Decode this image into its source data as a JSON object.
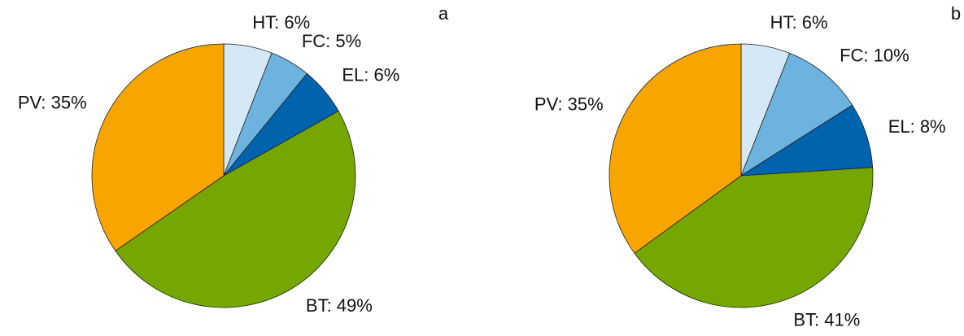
{
  "chart_data": [
    {
      "type": "pie",
      "panel_label": "a",
      "values": [
        6,
        5,
        6,
        49,
        35
      ],
      "value_labels": [
        "HT: 6%",
        "FC: 5%",
        "EL: 6%",
        "BT: 49%",
        "PV: 35%"
      ],
      "colors": [
        "#d4e8f5",
        "#6db3e0",
        "#0063ad",
        "#76a600",
        "#f9a500"
      ]
    },
    {
      "type": "pie",
      "panel_label": "b",
      "values": [
        6,
        10,
        8,
        41,
        35
      ],
      "value_labels": [
        "HT: 6%",
        "FC: 10%",
        "EL: 8%",
        "BT: 41%",
        "PV: 35%"
      ],
      "colors": [
        "#d4e8f5",
        "#6db3e0",
        "#0063ad",
        "#76a600",
        "#f9a500"
      ]
    }
  ]
}
